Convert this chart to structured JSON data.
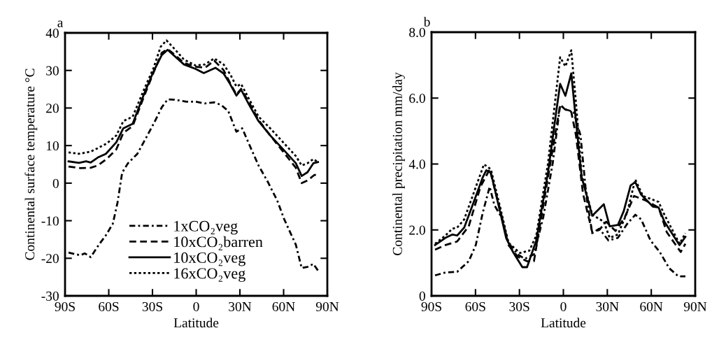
{
  "chart_data": [
    {
      "type": "line",
      "title": "a",
      "xlabel": "Latitude",
      "ylabel": "Continental surface temperature °C",
      "xlim": [
        -90,
        90
      ],
      "ylim": [
        -30,
        40
      ],
      "xticks": [
        {
          "value": -90,
          "label": "90S"
        },
        {
          "value": -60,
          "label": "60S"
        },
        {
          "value": -30,
          "label": "30S"
        },
        0,
        {
          "value": 30,
          "label": "30N"
        },
        {
          "value": 60,
          "label": "60N"
        },
        {
          "value": 90,
          "label": "90N"
        }
      ],
      "yticks": [
        -30,
        -20,
        -10,
        0,
        10,
        20,
        30,
        40
      ],
      "grid": false,
      "legend": "bottom",
      "marker": "none",
      "series": [
        {
          "name": "1xCO₂veg",
          "color": "#000000",
          "line_style": "dashdot",
          "x": [
            -87.6,
            -79.6,
            -76.4,
            -72.4,
            -66.8,
            -62,
            -57.2,
            -54,
            -50.8,
            -46.8,
            -40.4,
            -35.6,
            -29.2,
            -23.6,
            -19.6,
            -14.8,
            -6.8,
            -0.4,
            6,
            12.4,
            17.2,
            22,
            27.6,
            31.6,
            36.4,
            42.8,
            49.2,
            55.6,
            60.4,
            68.4,
            72.4,
            76.4,
            80.4,
            84
          ],
          "values": [
            -18.5,
            -19.2,
            -18.7,
            -19.7,
            -16.4,
            -13.9,
            -10.8,
            -5.2,
            2.8,
            5.3,
            7.8,
            11.2,
            15.8,
            20.2,
            22.3,
            22.2,
            21.7,
            21.7,
            21.2,
            21.5,
            20.8,
            19.2,
            13.7,
            14.6,
            10.3,
            4.7,
            0.3,
            -4.6,
            -9.6,
            -16.4,
            -22.6,
            -22.3,
            -21.5,
            -23.5
          ]
        },
        {
          "name": "10xCO₂barren",
          "color": "#000000",
          "line_style": "dashed",
          "x": [
            -87.6,
            -79.6,
            -72.4,
            -67.6,
            -61.2,
            -54.8,
            -50,
            -43.6,
            -35.6,
            -29.2,
            -23.6,
            -19.6,
            -14.8,
            -8.4,
            -0.4,
            6,
            12.4,
            18.8,
            23.6,
            27.6,
            30.8,
            36.4,
            42.8,
            50.8,
            59.6,
            68.4,
            72.4,
            76.4,
            81.2,
            83.6
          ],
          "values": [
            4.4,
            4.0,
            4.1,
            4.7,
            6.5,
            9.0,
            13.4,
            15.2,
            23.3,
            29.5,
            34.7,
            35.7,
            34.2,
            32,
            31,
            30.7,
            32.6,
            30.1,
            26.4,
            23.6,
            25.1,
            21.4,
            16.8,
            12.7,
            8.4,
            4.1,
            0,
            0.7,
            2.2,
            2.2
          ]
        },
        {
          "name": "10xCO₂veg",
          "color": "#000000",
          "line_style": "solid",
          "x": [
            -87.6,
            -80.4,
            -75.6,
            -72.4,
            -67.6,
            -62,
            -54.8,
            -50,
            -43.6,
            -35.6,
            -29.2,
            -23.6,
            -19.6,
            -14.8,
            -8.4,
            -0.4,
            5.2,
            13.2,
            18.8,
            22.8,
            27.6,
            30.8,
            36.4,
            42.8,
            50.8,
            60.4,
            68.4,
            72.4,
            76.4,
            80.4,
            83.6
          ],
          "values": [
            5.8,
            5.4,
            5.8,
            5.5,
            6.8,
            7.8,
            10.9,
            14.6,
            15.8,
            23.9,
            29.8,
            34.1,
            35.5,
            33.8,
            31.6,
            30.4,
            29.3,
            30.7,
            29.2,
            26.7,
            23.3,
            24.9,
            20.8,
            16.5,
            12.7,
            8.7,
            5.3,
            1.9,
            2.9,
            5.3,
            5.6
          ]
        },
        {
          "name": "16xCO₂veg",
          "color": "#000000",
          "line_style": "dotted",
          "x": [
            -87.6,
            -80.4,
            -72.4,
            -67.6,
            -61.2,
            -54.8,
            -50,
            -43.6,
            -35.6,
            -29.2,
            -24.4,
            -20.4,
            -14.8,
            -8.4,
            -0.4,
            6,
            12.4,
            18.8,
            23.6,
            27.6,
            30.8,
            36.4,
            42.8,
            50.8,
            59.6,
            68.4,
            72.4,
            76.4,
            80.4,
            83.6
          ],
          "values": [
            8.2,
            7.8,
            8.4,
            9.3,
            10.6,
            12.7,
            16.5,
            17.7,
            25.1,
            30.7,
            36.3,
            38.0,
            35.7,
            32.9,
            31.3,
            31.6,
            33.2,
            31.6,
            28.8,
            25.7,
            26.4,
            22.3,
            17.7,
            14.6,
            10.9,
            7.2,
            4.7,
            5.3,
            6.4,
            5.6
          ]
        }
      ]
    },
    {
      "type": "line",
      "title": "b",
      "xlabel": "Latitude",
      "ylabel": "Continental precipitation mm/day",
      "xlim": [
        -90,
        90
      ],
      "ylim": [
        0,
        8
      ],
      "xticks": [
        {
          "value": -90,
          "label": "90S"
        },
        {
          "value": -60,
          "label": "60S"
        },
        {
          "value": -30,
          "label": "30S"
        },
        0,
        {
          "value": 30,
          "label": "30N"
        },
        {
          "value": 60,
          "label": "60N"
        },
        {
          "value": 90,
          "label": "90N"
        }
      ],
      "yticks": [
        {
          "value": 0,
          "label": "0"
        },
        {
          "value": 2,
          "label": "2.0"
        },
        {
          "value": 4,
          "label": "4.0"
        },
        {
          "value": 6,
          "label": "6.0"
        },
        {
          "value": 8,
          "label": "8.0"
        }
      ],
      "grid": false,
      "marker": "none",
      "series": [
        {
          "color": "#000000",
          "line_style": "dashdot",
          "x": [
            -87.6,
            -80.5,
            -72.5,
            -64.6,
            -59.8,
            -55,
            -50.3,
            -47.1,
            -42.3,
            -37.5,
            -31.2,
            -26.4,
            -20.1,
            -13.7,
            -7.3,
            -2.2,
            2,
            7,
            11.7,
            15.7,
            19.7,
            24.5,
            30.8,
            37.2,
            43.5,
            49.1,
            53.1,
            59.5,
            65.8,
            72.2,
            78.6,
            83.3
          ],
          "values": [
            0.62,
            0.71,
            0.73,
            1.05,
            1.54,
            2.53,
            3.31,
            2.75,
            2.39,
            1.61,
            1.26,
            1.12,
            1.26,
            2.39,
            4.02,
            5.79,
            5.65,
            5.58,
            4.87,
            3.03,
            1.9,
            2.04,
            1.68,
            1.76,
            2.18,
            2.46,
            2.32,
            1.68,
            1.33,
            0.84,
            0.59,
            0.59
          ]
        },
        {
          "color": "#000000",
          "line_style": "dashed",
          "x": [
            -87.6,
            -80.5,
            -72.5,
            -64.6,
            -56.6,
            -50.3,
            -43.1,
            -37.5,
            -31.2,
            -24.8,
            -20.1,
            -15.3,
            -7.3,
            -2.2,
            1.4,
            5.4,
            8.6,
            13.4,
            19.7,
            24.5,
            29.3,
            35.6,
            42,
            48.3,
            56.3,
            65,
            70.6,
            80.1,
            83.3
          ],
          "values": [
            1.4,
            1.54,
            1.65,
            2.11,
            3.31,
            3.84,
            2.6,
            1.54,
            1.19,
            1.05,
            1.05,
            2.32,
            4.45,
            5.79,
            5.65,
            5.58,
            4.87,
            3.1,
            1.93,
            2.0,
            2.25,
            1.97,
            2.39,
            3.03,
            2.89,
            2.68,
            1.93,
            1.33,
            1.58
          ]
        },
        {
          "color": "#000000",
          "line_style": "solid",
          "x": [
            -87.6,
            -80.5,
            -75.7,
            -72.5,
            -67.7,
            -61.4,
            -55,
            -52.6,
            -49.5,
            -43.1,
            -39.1,
            -34.4,
            -28,
            -24.8,
            -18.5,
            -10.5,
            -4.9,
            -2.2,
            1.4,
            5.4,
            8.6,
            12.5,
            19.7,
            27.6,
            31.6,
            37.2,
            41.2,
            45.9,
            49.1,
            53.1,
            61,
            65,
            69,
            79.3,
            83.3
          ],
          "values": [
            1.54,
            1.76,
            1.86,
            1.83,
            2.07,
            2.82,
            3.6,
            3.81,
            3.74,
            2.53,
            1.76,
            1.33,
            0.87,
            0.87,
            1.68,
            3.74,
            5.58,
            6.43,
            6.07,
            6.75,
            5.3,
            3.6,
            2.43,
            2.78,
            2.11,
            2.15,
            2.57,
            3.35,
            3.45,
            3.07,
            2.71,
            2.68,
            2.25,
            1.54,
            1.79
          ]
        },
        {
          "color": "#000000",
          "line_style": "dotted",
          "x": [
            -87.6,
            -80.5,
            -75.7,
            -72.5,
            -67.7,
            -61.4,
            -54.2,
            -49.5,
            -43.1,
            -37.5,
            -29.6,
            -23.2,
            -18.5,
            -10.5,
            -2.2,
            1.4,
            5.4,
            8.6,
            12.5,
            19.7,
            27.6,
            31.6,
            37.2,
            43.5,
            49.1,
            54.3,
            65,
            69,
            79.3,
            83.3
          ],
          "values": [
            1.58,
            1.83,
            2.04,
            2.07,
            2.32,
            3.1,
            3.99,
            3.84,
            2.68,
            1.61,
            1.3,
            1.37,
            1.83,
            4.02,
            7.24,
            6.96,
            7.45,
            5.86,
            3.67,
            2.46,
            2.25,
            1.76,
            1.86,
            2.53,
            3.53,
            3.03,
            2.85,
            2.46,
            1.58,
            1.9
          ]
        }
      ]
    }
  ]
}
